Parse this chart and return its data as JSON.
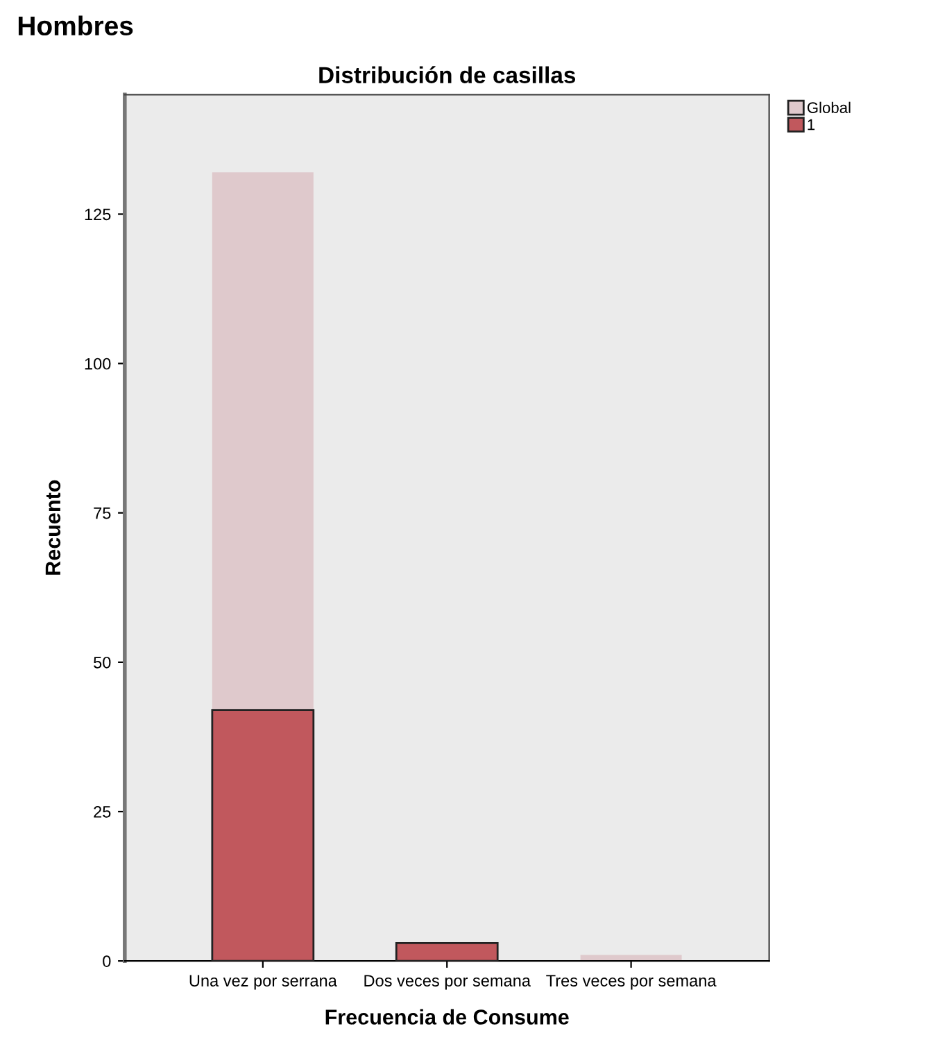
{
  "chart_data": {
    "type": "bar",
    "title": "Hombres",
    "subtitle": "Distribución de casillas",
    "xlabel": "Frecuencia de Consume",
    "ylabel": "Recuento",
    "categories": [
      "Una vez por serrana",
      "Dos veces por semana",
      "Tres veces por semana"
    ],
    "series": [
      {
        "name": "Global",
        "color": "#dfc9cc",
        "values": [
          132,
          null,
          1
        ]
      },
      {
        "name": "1",
        "color": "#c1585d",
        "values": [
          42,
          3,
          null
        ]
      }
    ],
    "ylim": [
      0,
      145
    ],
    "yticks": [
      0,
      25,
      50,
      75,
      100,
      125
    ],
    "grid": false,
    "legend": "top right"
  }
}
